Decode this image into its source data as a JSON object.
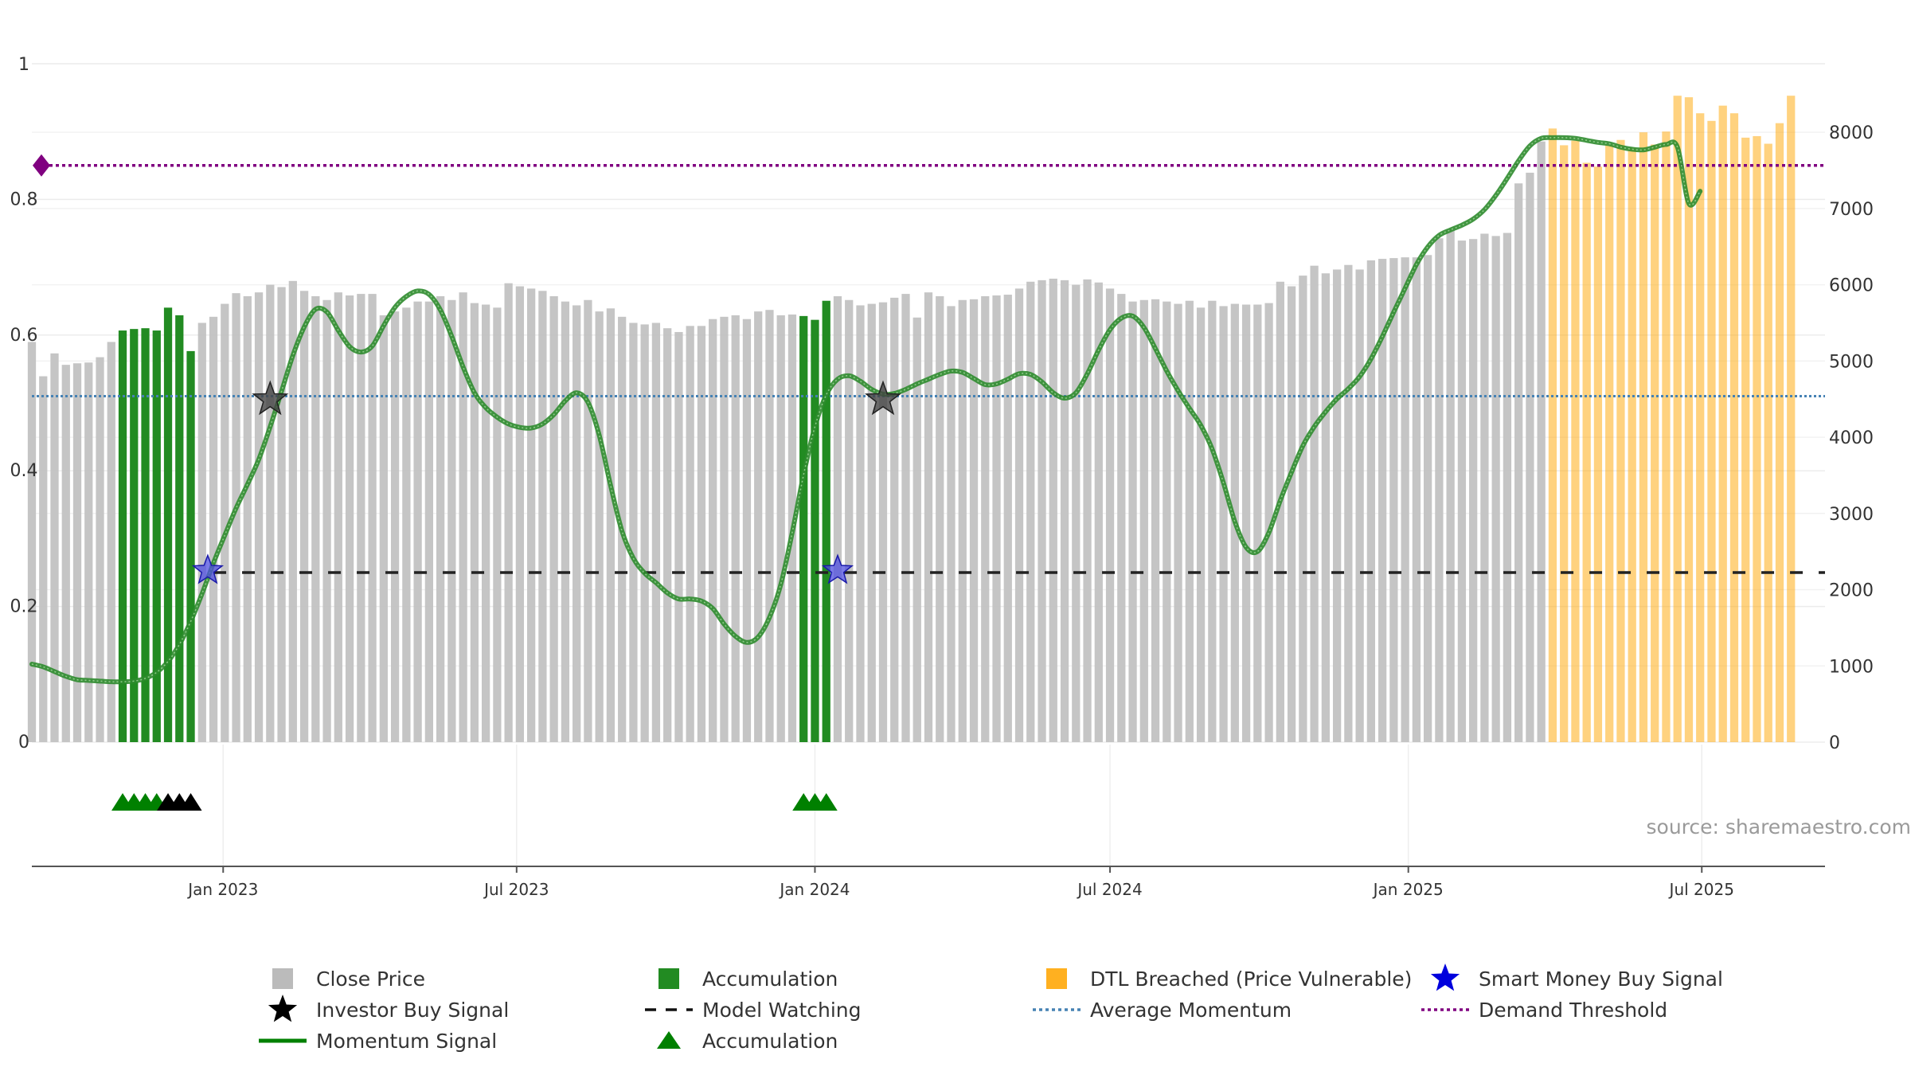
{
  "chart_data": {
    "type": "bar",
    "source": "source: sharemaestro.com",
    "left_axis": {
      "ylim": [
        0,
        1
      ],
      "ticks": [
        "0",
        "0.2",
        "0.4",
        "0.6",
        "0.8",
        "1"
      ]
    },
    "right_axis": {
      "ylim": [
        0,
        8900
      ],
      "ticks": [
        "0",
        "1000",
        "2000",
        "3000",
        "4000",
        "5000",
        "6000",
        "7000",
        "8000"
      ]
    },
    "x_axis": {
      "start": "2022-09-05",
      "end": "2025-09-15",
      "ticks": [
        {
          "label": "Jan 2023",
          "date": "2023-01-01"
        },
        {
          "label": "Jul 2023",
          "date": "2023-07-01"
        },
        {
          "label": "Jan 2024",
          "date": "2024-01-01"
        },
        {
          "label": "Jul 2024",
          "date": "2024-07-01"
        },
        {
          "label": "Jan 2025",
          "date": "2025-01-01"
        },
        {
          "label": "Jul 2025",
          "date": "2025-07-01"
        }
      ]
    },
    "close_price": {
      "name": "Close Price",
      "start": "2022-09-05",
      "interval_days": 7,
      "values": [
        5250,
        4800,
        5100,
        4950,
        4970,
        4980,
        5050,
        5250,
        5400,
        5420,
        5430,
        5400,
        5700,
        5600,
        5130,
        5500,
        5580,
        5750,
        5890,
        5850,
        5900,
        6000,
        5970,
        6050,
        5920,
        5850,
        5800,
        5900,
        5860,
        5880,
        5880,
        5600,
        5650,
        5700,
        5780,
        5780,
        5850,
        5800,
        5900,
        5760,
        5740,
        5700,
        6020,
        5980,
        5950,
        5920,
        5850,
        5780,
        5730,
        5800,
        5650,
        5690,
        5580,
        5500,
        5480,
        5500,
        5430,
        5380,
        5460,
        5460,
        5550,
        5580,
        5600,
        5550,
        5650,
        5670,
        5600,
        5610,
        5590,
        5540,
        5790,
        5850,
        5800,
        5730,
        5750,
        5770,
        5830,
        5880,
        5570,
        5900,
        5850,
        5720,
        5800,
        5810,
        5850,
        5860,
        5870,
        5950,
        6040,
        6060,
        6080,
        6060,
        6000,
        6070,
        6030,
        5950,
        5880,
        5780,
        5800,
        5810,
        5780,
        5750,
        5790,
        5700,
        5790,
        5720,
        5750,
        5740,
        5740,
        5760,
        6040,
        5980,
        6120,
        6250,
        6150,
        6200,
        6260,
        6200,
        6320,
        6340,
        6350,
        6360,
        6360,
        6390,
        6610,
        6720,
        6580,
        6600,
        6670,
        6640,
        6680,
        7330,
        7470,
        7880,
        8050,
        7830,
        7890,
        7600,
        7550,
        7830,
        7900,
        7800,
        8000,
        7840,
        8010,
        8480,
        8460,
        8250,
        8150,
        8350,
        8250,
        7930,
        7950,
        7850,
        8120,
        8480
      ]
    },
    "accumulation_bars": {
      "name": "Accumulation",
      "color": "#228B22",
      "bar_indices": [
        8,
        9,
        10,
        11,
        12,
        13,
        14,
        68,
        69,
        70
      ]
    },
    "dtl_breached": {
      "name": "DTL Breached (Price Vulnerable)",
      "color": "#FFA500",
      "from_index": 134
    },
    "momentum": {
      "name": "Momentum Signal",
      "start": "2022-09-05",
      "interval_days": 7,
      "values": [
        0.115,
        0.111,
        0.104,
        0.097,
        0.092,
        0.091,
        0.09,
        0.089,
        0.089,
        0.09,
        0.094,
        0.103,
        0.119,
        0.144,
        0.178,
        0.219,
        0.264,
        0.305,
        0.345,
        0.38,
        0.417,
        0.465,
        0.517,
        0.57,
        0.612,
        0.638,
        0.634,
        0.607,
        0.583,
        0.575,
        0.584,
        0.614,
        0.641,
        0.657,
        0.665,
        0.66,
        0.637,
        0.598,
        0.553,
        0.515,
        0.493,
        0.479,
        0.469,
        0.464,
        0.463,
        0.469,
        0.483,
        0.503,
        0.515,
        0.501,
        0.452,
        0.378,
        0.311,
        0.271,
        0.249,
        0.235,
        0.22,
        0.211,
        0.211,
        0.208,
        0.197,
        0.174,
        0.156,
        0.147,
        0.155,
        0.184,
        0.233,
        0.309,
        0.394,
        0.465,
        0.512,
        0.535,
        0.54,
        0.532,
        0.52,
        0.513,
        0.514,
        0.52,
        0.528,
        0.535,
        0.542,
        0.547,
        0.545,
        0.536,
        0.527,
        0.528,
        0.535,
        0.543,
        0.542,
        0.531,
        0.515,
        0.507,
        0.515,
        0.543,
        0.578,
        0.608,
        0.625,
        0.628,
        0.611,
        0.58,
        0.547,
        0.518,
        0.492,
        0.467,
        0.432,
        0.382,
        0.325,
        0.287,
        0.281,
        0.309,
        0.356,
        0.398,
        0.437,
        0.465,
        0.487,
        0.506,
        0.521,
        0.539,
        0.565,
        0.598,
        0.634,
        0.669,
        0.704,
        0.73,
        0.747,
        0.755,
        0.762,
        0.771,
        0.785,
        0.806,
        0.831,
        0.857,
        0.879,
        0.89,
        0.891,
        0.891,
        0.89,
        0.887,
        0.884,
        0.882,
        0.877,
        0.874,
        0.873,
        0.877,
        0.881,
        0.877,
        0.794,
        0.812
      ]
    },
    "average_momentum": {
      "name": "Average Momentum",
      "value": 0.51
    },
    "demand_threshold": {
      "name": "Demand Threshold",
      "value": 0.85
    },
    "model_watching": {
      "name": "Model Watching",
      "value": 0.25,
      "from_index": 16
    },
    "investor_buy_signals": {
      "name": "Investor Buy Signal",
      "points": [
        {
          "index": 21,
          "value": 0.505
        },
        {
          "index": 75,
          "value": 0.505
        }
      ]
    },
    "smart_money_signals": {
      "name": "Smart Money Buy Signal",
      "points": [
        {
          "index": 15.5,
          "value": 0.253
        },
        {
          "index": 71,
          "value": 0.253
        }
      ]
    },
    "accumulation_markers": {
      "name": "Accumulation",
      "indices": [
        8,
        9,
        10,
        11,
        68,
        69,
        70
      ]
    },
    "watch_markers": {
      "indices": [
        12,
        13,
        14
      ]
    }
  },
  "colors": {
    "bar_gray": "#c2c2c2",
    "accumulation": "#228B22",
    "dtl": "#FFA500",
    "momentum": "#2e8b2e",
    "avg_momentum": "#4682B4",
    "threshold": "#800080",
    "smart_money": "#0000dd",
    "marker_green": "#008000"
  },
  "legend": [
    {
      "label": "Close Price",
      "symbol": "square-gray"
    },
    {
      "label": "Accumulation",
      "symbol": "square-green"
    },
    {
      "label": "DTL Breached (Price Vulnerable)",
      "symbol": "square-orange"
    },
    {
      "label": "Smart Money Buy Signal",
      "symbol": "star-blue"
    },
    {
      "label": "Investor Buy Signal",
      "symbol": "star-black"
    },
    {
      "label": "Model Watching",
      "symbol": "dash-black"
    },
    {
      "label": "Average Momentum",
      "symbol": "dot-blue"
    },
    {
      "label": "Demand Threshold",
      "symbol": "dot-purple"
    },
    {
      "label": "Momentum Signal",
      "symbol": "line-green"
    },
    {
      "label": "Accumulation",
      "symbol": "triangle-green"
    }
  ]
}
